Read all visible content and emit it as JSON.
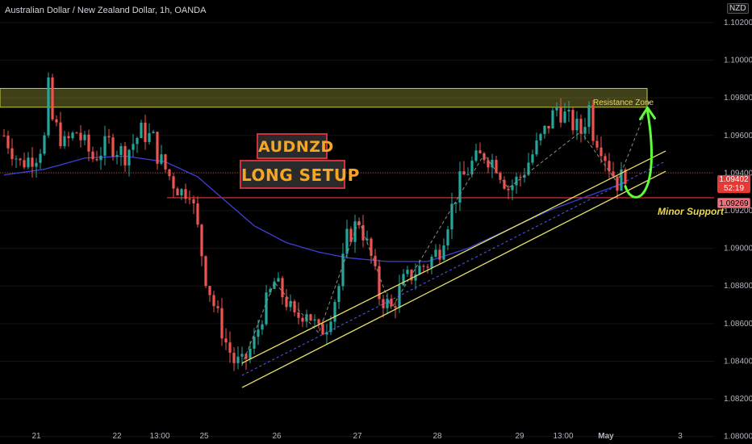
{
  "header": {
    "title": "Australian Dollar / New Zealand Dollar, 1h, OANDA",
    "currency_badge": "NZD"
  },
  "annotations": {
    "setup_line1": "AUDNZD",
    "setup_line2": "LONG SETUP",
    "resistance_label": "Resistance Zone",
    "support_label": "Minor Support"
  },
  "price_tags": {
    "current_price": "1.09402",
    "countdown": "52:19",
    "support_price": "1.09269"
  },
  "colors": {
    "up": "#26a69a",
    "down": "#ef5350",
    "ma": "#3f3fd6",
    "resistance": "#c8c84a",
    "support": "#e53935",
    "channel": "#e8e06a",
    "projection": "#5cff3a"
  },
  "chart_data": {
    "type": "candlestick",
    "symbol": "AUDNZD",
    "timeframe": "1h",
    "x_ticks": [
      "21",
      "22",
      "13:00",
      "25",
      "26",
      "27",
      "28",
      "29",
      "13:00",
      "May",
      "3"
    ],
    "y_ticks": [
      "1.10200",
      "1.10000",
      "1.09800",
      "1.09600",
      "1.09400",
      "1.09200",
      "1.09000",
      "1.08800",
      "1.08600",
      "1.08400",
      "1.08200",
      "1.08000"
    ],
    "y_range": [
      1.0796,
      1.1032
    ],
    "close_path": [
      [
        0,
        1.096
      ],
      [
        4,
        1.0945
      ],
      [
        8,
        1.095
      ],
      [
        10,
        1.0958
      ],
      [
        11,
        1.0985
      ],
      [
        12,
        1.0968
      ],
      [
        15,
        1.0955
      ],
      [
        18,
        1.0962
      ],
      [
        22,
        1.0948
      ],
      [
        26,
        1.0956
      ],
      [
        30,
        1.095
      ],
      [
        34,
        1.0962
      ],
      [
        37,
        1.0958
      ],
      [
        38,
        1.095
      ],
      [
        40,
        1.0942
      ],
      [
        42,
        1.0935
      ],
      [
        44,
        1.093
      ],
      [
        46,
        1.0932
      ],
      [
        48,
        1.091
      ],
      [
        50,
        1.0885
      ],
      [
        52,
        1.087
      ],
      [
        55,
        1.085
      ],
      [
        57,
        1.084
      ],
      [
        59,
        1.0838
      ],
      [
        62,
        1.085
      ],
      [
        64,
        1.0865
      ],
      [
        67,
        1.0882
      ],
      [
        70,
        1.0872
      ],
      [
        72,
        1.0862
      ],
      [
        75,
        1.0868
      ],
      [
        78,
        1.0855
      ],
      [
        80,
        1.086
      ],
      [
        83,
        1.088
      ],
      [
        85,
        1.0905
      ],
      [
        88,
        1.0915
      ],
      [
        91,
        1.0895
      ],
      [
        93,
        1.0875
      ],
      [
        96,
        1.0868
      ],
      [
        99,
        1.0882
      ],
      [
        102,
        1.0888
      ],
      [
        105,
        1.0892
      ],
      [
        108,
        1.09
      ],
      [
        110,
        1.0915
      ],
      [
        113,
        1.0935
      ],
      [
        116,
        1.0945
      ],
      [
        119,
        1.095
      ],
      [
        122,
        1.0945
      ],
      [
        125,
        1.0932
      ],
      [
        128,
        1.0938
      ],
      [
        131,
        1.095
      ],
      [
        134,
        1.0962
      ],
      [
        137,
        1.0975
      ],
      [
        140,
        1.0968
      ],
      [
        143,
        1.0962
      ],
      [
        145,
        1.0975
      ],
      [
        146,
        1.0962
      ],
      [
        148,
        1.0955
      ],
      [
        150,
        1.0944
      ],
      [
        152,
        1.0935
      ],
      [
        154,
        1.094
      ]
    ],
    "moving_average": [
      [
        0,
        1.0939
      ],
      [
        10,
        1.0942
      ],
      [
        20,
        1.0948
      ],
      [
        30,
        1.0949
      ],
      [
        40,
        1.0946
      ],
      [
        48,
        1.0938
      ],
      [
        55,
        1.0925
      ],
      [
        62,
        1.0912
      ],
      [
        70,
        1.0903
      ],
      [
        78,
        1.0898
      ],
      [
        85,
        1.0895
      ],
      [
        95,
        1.0893
      ],
      [
        105,
        1.0893
      ],
      [
        115,
        1.09
      ],
      [
        125,
        1.091
      ],
      [
        135,
        1.092
      ],
      [
        145,
        1.0928
      ],
      [
        154,
        1.0935
      ]
    ],
    "resistance_zone": [
      1.0975,
      1.0985
    ],
    "minor_support": 1.09269,
    "current_price": 1.09402,
    "ascending_channel": {
      "lower_start": [
        59,
        1.0826
      ],
      "lower_end": [
        154,
        1.093
      ],
      "upper_start": [
        59,
        1.0839
      ],
      "upper_end": [
        154,
        1.0941
      ]
    },
    "projection": "bounce from channel support toward resistance zone"
  }
}
